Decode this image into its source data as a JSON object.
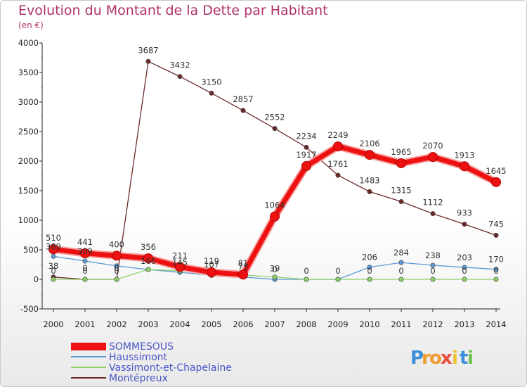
{
  "title": "Evolution du Montant de la Dette par Habitant",
  "subtitle": "(en €)",
  "logo": {
    "letters": [
      "P",
      "r",
      "o",
      "x",
      "i",
      "t",
      "i"
    ],
    "colors": [
      "#3a8fd8",
      "#f29a2e",
      "#f29a2e",
      "#e74c3c",
      "#f2c12e",
      "#3a8fd8",
      "#6cc04a"
    ]
  },
  "chart_data": {
    "type": "line",
    "title": "Evolution du Montant de la Dette par Habitant",
    "subtitle": "(en €)",
    "xlabel": "",
    "ylabel": "",
    "x": [
      "2000",
      "2001",
      "2002",
      "2003",
      "2004",
      "2005",
      "2006",
      "2007",
      "2008",
      "2009",
      "2010",
      "2011",
      "2012",
      "2013",
      "2014"
    ],
    "ylim": [
      -500,
      4000
    ],
    "yticks": [
      -500,
      0,
      500,
      1000,
      1500,
      2000,
      2500,
      3000,
      3500,
      4000
    ],
    "grid": false,
    "legend_position": "bottom-left",
    "series": [
      {
        "name": "SOMMESOUS",
        "color": "#ee1111",
        "values": [
          510,
          441,
          400,
          356,
          211,
          119,
          81,
          1064,
          1917,
          2249,
          2106,
          1965,
          2070,
          1913,
          1645
        ],
        "labels": [
          "510",
          "441",
          "400",
          "356",
          "211",
          "119",
          "81",
          "1064",
          "1917",
          "2249",
          "2106",
          "1965",
          "2070",
          "1913",
          "1645"
        ]
      },
      {
        "name": "Haussimont",
        "color": "#5b9bd5",
        "values": [
          389,
          309,
          228,
          166,
          119,
          67,
          38,
          0,
          0,
          0,
          206,
          284,
          238,
          203,
          170
        ],
        "labels": [
          "389",
          "309",
          "",
          "",
          "",
          "",
          "",
          "0",
          "",
          "",
          "206",
          "284",
          "238",
          "203",
          "170"
        ]
      },
      {
        "name": "Vassimont-et-Chapelaine",
        "color": "#8fd16a",
        "values": [
          0,
          0,
          0,
          166,
          145,
          107,
          73,
          39,
          0,
          0,
          0,
          0,
          0,
          0,
          0
        ],
        "labels": [
          "0",
          "0",
          "0",
          "166",
          "145",
          "107",
          "73",
          "39",
          "0",
          "0",
          "0",
          "0",
          "0",
          "0",
          "0"
        ]
      },
      {
        "name": "Montépreux",
        "color": "#6b2a2a",
        "values": [
          38,
          0,
          0,
          3687,
          3432,
          3150,
          2857,
          2552,
          2234,
          1761,
          1483,
          1315,
          1112,
          933,
          745
        ],
        "labels": [
          "38",
          "0",
          "0",
          "3687",
          "3432",
          "3150",
          "2857",
          "2552",
          "2234",
          "1761",
          "1483",
          "1315",
          "1112",
          "933",
          "745"
        ]
      }
    ]
  }
}
